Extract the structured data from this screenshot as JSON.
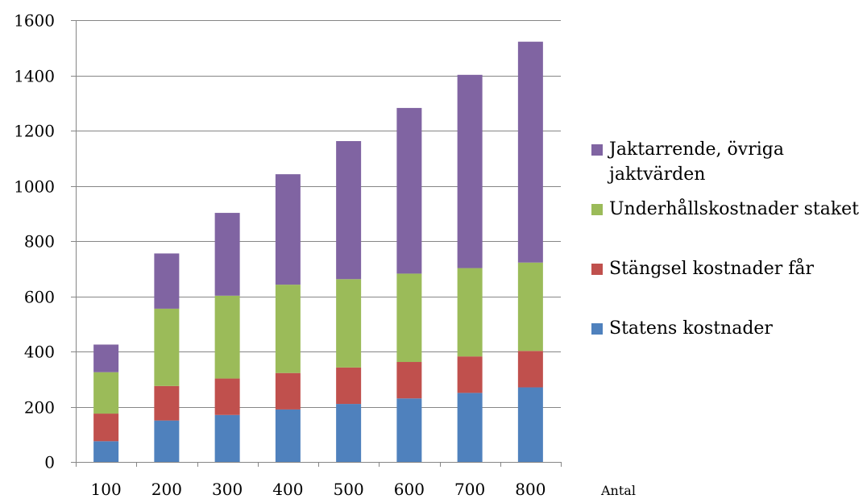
{
  "chart_data": {
    "type": "bar",
    "stacked": true,
    "categories": [
      "100",
      "200",
      "300",
      "400",
      "500",
      "600",
      "700",
      "800"
    ],
    "series": [
      {
        "name": "Statens kostnader",
        "color": "#4f81bd",
        "values": [
          75,
          150,
          170,
          190,
          210,
          230,
          250,
          270
        ]
      },
      {
        "name": "Stängsel kostnader får",
        "color": "#c0504d",
        "values": [
          100,
          125,
          132,
          132,
          132,
          132,
          132,
          132
        ]
      },
      {
        "name": "Underhållskostnader staket",
        "color": "#9bbb59",
        "values": [
          150,
          280,
          300,
          320,
          320,
          320,
          320,
          320
        ]
      },
      {
        "name": "Jaktarrende, övriga jaktvärden",
        "color": "#8064a2",
        "values": [
          100,
          200,
          300,
          400,
          500,
          600,
          700,
          800
        ]
      }
    ],
    "xlabel": "Antal",
    "ylabel": "",
    "ylim": [
      0,
      1600
    ],
    "yticks": [
      0,
      200,
      400,
      600,
      800,
      1000,
      1200,
      1400,
      1600
    ],
    "grid": true,
    "legend": "right",
    "legend_order": [
      "Jaktarrende, övriga jaktvärden",
      "Underhållskostnader staket",
      "Stängsel kostnader får",
      "Statens kostnader"
    ]
  }
}
